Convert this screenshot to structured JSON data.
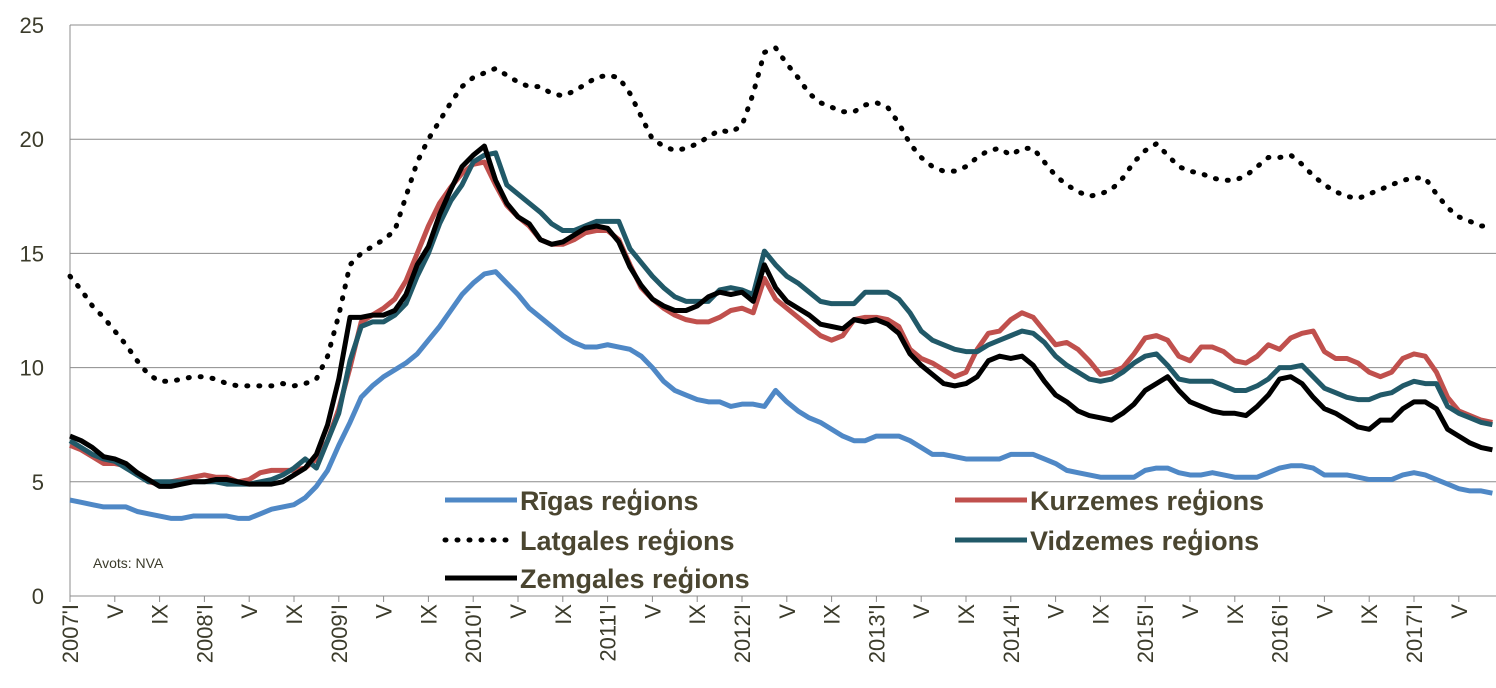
{
  "chart_data": {
    "type": "line",
    "annotation": "Avots: NVA",
    "categories": [
      "2007'I",
      null,
      null,
      null,
      "V",
      null,
      null,
      null,
      "IX",
      null,
      null,
      null,
      "2008'I",
      null,
      null,
      null,
      "V",
      null,
      null,
      null,
      "IX",
      null,
      null,
      null,
      "2009'I",
      null,
      null,
      null,
      "V",
      null,
      null,
      null,
      "IX",
      null,
      null,
      null,
      "2010'I",
      null,
      null,
      null,
      "V",
      null,
      null,
      null,
      "IX",
      null,
      null,
      null,
      "2011'I",
      null,
      null,
      null,
      "V",
      null,
      null,
      null,
      "IX",
      null,
      null,
      null,
      "2012'I",
      null,
      null,
      null,
      "V",
      null,
      null,
      null,
      "IX",
      null,
      null,
      null,
      "2013'I",
      null,
      null,
      null,
      "V",
      null,
      null,
      null,
      "IX",
      null,
      null,
      null,
      "2014'I",
      null,
      null,
      null,
      "V",
      null,
      null,
      null,
      "IX",
      null,
      null,
      null,
      "2015'I",
      null,
      null,
      null,
      "V",
      null,
      null,
      null,
      "IX",
      null,
      null,
      null,
      "2016'I",
      null,
      null,
      null,
      "V",
      null,
      null,
      null,
      "IX",
      null,
      null,
      null,
      "2017'I",
      null,
      null,
      null,
      "V",
      null,
      null,
      null
    ],
    "ylim": [
      0,
      25
    ],
    "yticks": [
      0,
      5,
      10,
      15,
      20,
      25
    ],
    "grid": true,
    "series": [
      {
        "name": "Rīgas reģions",
        "color": "#4f88c6",
        "style": "solid",
        "values": [
          4.2,
          4.1,
          4.0,
          3.9,
          3.9,
          3.9,
          3.7,
          3.6,
          3.5,
          3.4,
          3.4,
          3.5,
          3.5,
          3.5,
          3.5,
          3.4,
          3.4,
          3.6,
          3.8,
          3.9,
          4.0,
          4.3,
          4.8,
          5.5,
          6.6,
          7.6,
          8.7,
          9.2,
          9.6,
          9.9,
          10.2,
          10.6,
          11.2,
          11.8,
          12.5,
          13.2,
          13.7,
          14.1,
          14.2,
          13.7,
          13.2,
          12.6,
          12.2,
          11.8,
          11.4,
          11.1,
          10.9,
          10.9,
          11.0,
          10.9,
          10.8,
          10.5,
          10.0,
          9.4,
          9.0,
          8.8,
          8.6,
          8.5,
          8.5,
          8.3,
          8.4,
          8.4,
          8.3,
          9.0,
          8.5,
          8.1,
          7.8,
          7.6,
          7.3,
          7.0,
          6.8,
          6.8,
          7.0,
          7.0,
          7.0,
          6.8,
          6.5,
          6.2,
          6.2,
          6.1,
          6.0,
          6.0,
          6.0,
          6.0,
          6.2,
          6.2,
          6.2,
          6.0,
          5.8,
          5.5,
          5.4,
          5.3,
          5.2,
          5.2,
          5.2,
          5.2,
          5.5,
          5.6,
          5.6,
          5.4,
          5.3,
          5.3,
          5.4,
          5.3,
          5.2,
          5.2,
          5.2,
          5.4,
          5.6,
          5.7,
          5.7,
          5.6,
          5.3,
          5.3,
          5.3,
          5.2,
          5.1,
          5.1,
          5.1,
          5.3,
          5.4,
          5.3,
          5.1,
          4.9,
          4.7,
          4.6,
          4.6,
          4.5
        ]
      },
      {
        "name": "Kurzemes reģions",
        "color": "#c0504d",
        "style": "solid",
        "values": [
          6.6,
          6.4,
          6.1,
          5.8,
          5.8,
          5.7,
          5.4,
          5.0,
          4.9,
          5.0,
          5.1,
          5.2,
          5.3,
          5.2,
          5.2,
          5.0,
          5.1,
          5.4,
          5.5,
          5.5,
          5.5,
          5.6,
          6.0,
          6.8,
          8.2,
          10.0,
          12.0,
          12.3,
          12.6,
          13.0,
          13.8,
          15.0,
          16.2,
          17.2,
          17.9,
          18.5,
          18.9,
          19.0,
          18.0,
          17.1,
          16.6,
          16.2,
          15.6,
          15.4,
          15.4,
          15.6,
          15.9,
          16.0,
          16.0,
          15.6,
          14.5,
          13.5,
          13.0,
          12.6,
          12.3,
          12.1,
          12.0,
          12.0,
          12.2,
          12.5,
          12.6,
          12.4,
          13.9,
          13.0,
          12.6,
          12.2,
          11.8,
          11.4,
          11.2,
          11.4,
          12.1,
          12.2,
          12.2,
          12.1,
          11.8,
          10.8,
          10.4,
          10.2,
          9.9,
          9.6,
          9.8,
          10.8,
          11.5,
          11.6,
          12.1,
          12.4,
          12.2,
          11.6,
          11.0,
          11.1,
          10.8,
          10.3,
          9.7,
          9.8,
          10.0,
          10.6,
          11.3,
          11.4,
          11.2,
          10.5,
          10.3,
          10.9,
          10.9,
          10.7,
          10.3,
          10.2,
          10.5,
          11.0,
          10.8,
          11.3,
          11.5,
          11.6,
          10.7,
          10.4,
          10.4,
          10.2,
          9.8,
          9.6,
          9.8,
          10.4,
          10.6,
          10.5,
          9.8,
          8.7,
          8.1,
          7.9,
          7.7,
          7.6
        ]
      },
      {
        "name": "Latgales reģions",
        "color": "#000000",
        "style": "dotted",
        "values": [
          14.0,
          13.4,
          12.7,
          12.2,
          11.6,
          11.0,
          10.3,
          9.7,
          9.4,
          9.4,
          9.5,
          9.6,
          9.6,
          9.5,
          9.3,
          9.2,
          9.2,
          9.2,
          9.2,
          9.3,
          9.2,
          9.3,
          9.5,
          10.5,
          12.3,
          14.5,
          15.0,
          15.3,
          15.6,
          16.0,
          17.5,
          19.0,
          20.0,
          20.8,
          21.6,
          22.3,
          22.7,
          22.9,
          23.1,
          22.8,
          22.5,
          22.3,
          22.3,
          22.0,
          21.9,
          22.1,
          22.4,
          22.7,
          22.8,
          22.7,
          22.0,
          21.0,
          20.0,
          19.7,
          19.5,
          19.6,
          19.8,
          20.1,
          20.4,
          20.3,
          20.6,
          22.0,
          23.8,
          24.0,
          23.3,
          22.7,
          22.0,
          21.6,
          21.4,
          21.2,
          21.2,
          21.5,
          21.6,
          21.4,
          20.7,
          19.8,
          19.2,
          18.8,
          18.6,
          18.6,
          18.8,
          19.2,
          19.5,
          19.6,
          19.3,
          19.6,
          19.6,
          19.0,
          18.4,
          18.0,
          17.7,
          17.5,
          17.6,
          17.8,
          18.3,
          19.0,
          19.5,
          19.8,
          19.3,
          18.8,
          18.6,
          18.5,
          18.3,
          18.2,
          18.2,
          18.4,
          18.8,
          19.2,
          19.2,
          19.3,
          18.9,
          18.4,
          18.0,
          17.7,
          17.5,
          17.4,
          17.6,
          17.8,
          18.0,
          18.2,
          18.3,
          18.3,
          17.6,
          17.0,
          16.6,
          16.4,
          16.2,
          16.2
        ]
      },
      {
        "name": "Vidzemes reģions",
        "color": "#215968",
        "style": "solid",
        "values": [
          6.8,
          6.5,
          6.2,
          6.0,
          5.9,
          5.6,
          5.3,
          5.0,
          5.0,
          5.0,
          5.0,
          5.0,
          5.0,
          5.0,
          4.9,
          4.9,
          4.9,
          5.0,
          5.1,
          5.3,
          5.6,
          6.0,
          5.6,
          6.8,
          8.0,
          10.3,
          11.8,
          12.0,
          12.0,
          12.3,
          12.8,
          14.0,
          15.0,
          16.3,
          17.3,
          18.0,
          19.0,
          19.3,
          19.4,
          18.0,
          17.6,
          17.2,
          16.8,
          16.3,
          16.0,
          16.0,
          16.2,
          16.4,
          16.4,
          16.4,
          15.2,
          14.6,
          14.0,
          13.5,
          13.1,
          12.9,
          12.9,
          12.9,
          13.4,
          13.5,
          13.4,
          13.2,
          15.1,
          14.5,
          14.0,
          13.7,
          13.3,
          12.9,
          12.8,
          12.8,
          12.8,
          13.3,
          13.3,
          13.3,
          13.0,
          12.4,
          11.6,
          11.2,
          11.0,
          10.8,
          10.7,
          10.7,
          11.0,
          11.2,
          11.4,
          11.6,
          11.5,
          11.1,
          10.5,
          10.1,
          9.8,
          9.5,
          9.4,
          9.5,
          9.8,
          10.2,
          10.5,
          10.6,
          10.1,
          9.5,
          9.4,
          9.4,
          9.4,
          9.2,
          9.0,
          9.0,
          9.2,
          9.5,
          10.0,
          10.0,
          10.1,
          9.6,
          9.1,
          8.9,
          8.7,
          8.6,
          8.6,
          8.8,
          8.9,
          9.2,
          9.4,
          9.3,
          9.3,
          8.3,
          8.0,
          7.8,
          7.6,
          7.5
        ]
      },
      {
        "name": "Zemgales reģions",
        "color": "#000000",
        "style": "solid",
        "values": [
          7.0,
          6.8,
          6.5,
          6.1,
          6.0,
          5.8,
          5.4,
          5.1,
          4.8,
          4.8,
          4.9,
          5.0,
          5.0,
          5.1,
          5.1,
          5.0,
          4.9,
          4.9,
          4.9,
          5.0,
          5.3,
          5.6,
          6.2,
          7.5,
          9.5,
          12.2,
          12.2,
          12.3,
          12.3,
          12.5,
          13.2,
          14.5,
          15.3,
          16.7,
          17.8,
          18.8,
          19.3,
          19.7,
          18.2,
          17.2,
          16.6,
          16.3,
          15.6,
          15.4,
          15.5,
          15.8,
          16.1,
          16.2,
          16.1,
          15.5,
          14.4,
          13.6,
          13.0,
          12.7,
          12.5,
          12.5,
          12.7,
          13.1,
          13.3,
          13.2,
          13.3,
          12.9,
          14.5,
          13.5,
          12.9,
          12.6,
          12.3,
          11.9,
          11.8,
          11.7,
          12.1,
          12.0,
          12.1,
          11.9,
          11.5,
          10.6,
          10.1,
          9.7,
          9.3,
          9.2,
          9.3,
          9.6,
          10.3,
          10.5,
          10.4,
          10.5,
          10.1,
          9.4,
          8.8,
          8.5,
          8.1,
          7.9,
          7.8,
          7.7,
          8.0,
          8.4,
          9.0,
          9.3,
          9.6,
          9.0,
          8.5,
          8.3,
          8.1,
          8.0,
          8.0,
          7.9,
          8.3,
          8.8,
          9.5,
          9.6,
          9.3,
          8.7,
          8.2,
          8.0,
          7.7,
          7.4,
          7.3,
          7.7,
          7.7,
          8.2,
          8.5,
          8.5,
          8.2,
          7.3,
          7.0,
          6.7,
          6.5,
          6.4
        ]
      }
    ]
  }
}
